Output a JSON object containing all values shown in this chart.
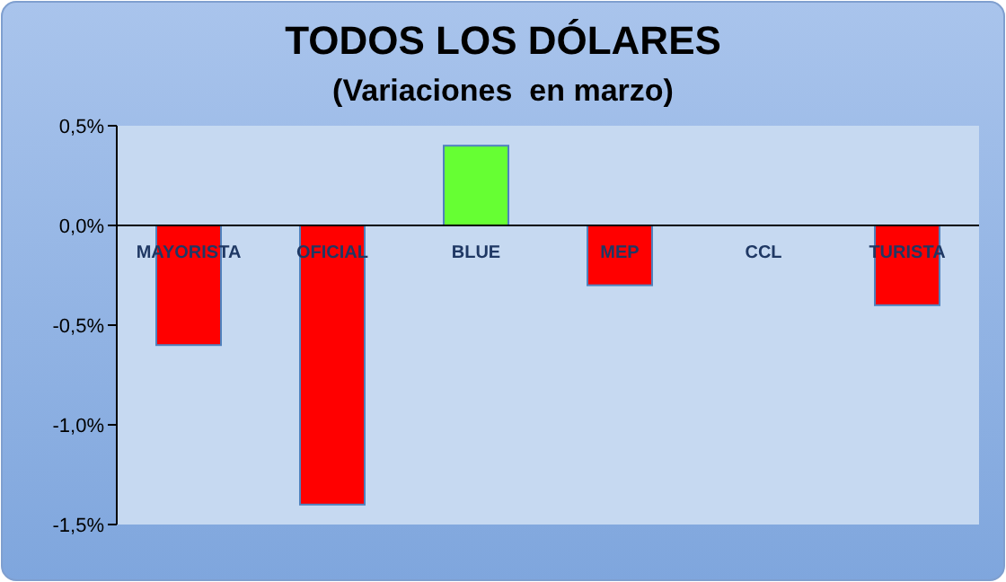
{
  "chart_data": {
    "type": "bar",
    "title": "TODOS LOS DÓLARES",
    "subtitle": "(Variaciones  en marzo)",
    "categories": [
      "MAYORISTA",
      "OFICIAL",
      "BLUE",
      "MEP",
      "CCL",
      "TURISTA"
    ],
    "values": [
      -0.6,
      -1.4,
      0.4,
      -0.3,
      0,
      -0.4
    ],
    "colors": [
      "#ff0000",
      "#ff0000",
      "#66ff33",
      "#ff0000",
      "#ff0000",
      "#ff0000"
    ],
    "ylim": [
      -1.5,
      0.5
    ],
    "yticks": [
      {
        "value": 0.5,
        "label": "0,5%"
      },
      {
        "value": 0,
        "label": "0,0%"
      },
      {
        "value": -0.5,
        "label": "-0,5%"
      },
      {
        "value": -1,
        "label": "-1,0%"
      },
      {
        "value": -1.5,
        "label": "-1,5%"
      }
    ],
    "grid": false
  }
}
